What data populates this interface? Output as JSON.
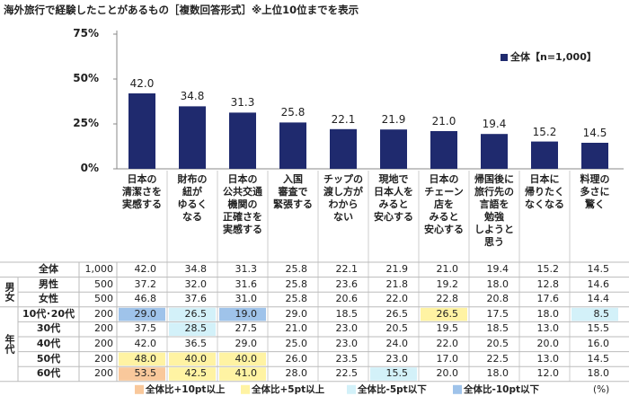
{
  "chart_data": {
    "type": "bar",
    "title": "海外旅行で経験したことがあるもの［複数回答形式］※上位10位までを表示",
    "legend": "全体【n=1,000】",
    "color": "#1f2a6e",
    "categories": [
      "日本の\n清潔さを\n実感する",
      "財布の\n紐が\nゆるく\nなる",
      "日本の\n公共交通\n機関の\n正確さを\n実感する",
      "入国\n審査で\n緊張する",
      "チップの\n渡し方が\nわから\nない",
      "現地で\n日本人を\nみると\n安心する",
      "日本の\nチェーン\n店を\nみると\n安心する",
      "帰国後に\n旅行先の\n言語を\n勉強\nしようと\n思う",
      "日本に\n帰りたく\nなくなる",
      "料理の\n多さに\n驚く"
    ],
    "values": [
      42.0,
      34.8,
      31.3,
      25.8,
      22.1,
      21.9,
      21.0,
      19.4,
      15.2,
      14.5
    ],
    "value_labels": [
      "42.0",
      "34.8",
      "31.3",
      "25.8",
      "22.1",
      "21.9",
      "21.0",
      "19.4",
      "15.2",
      "14.5"
    ],
    "ylim": [
      0,
      75
    ],
    "yticks": [
      {
        "value": 0,
        "label": "0%"
      },
      {
        "value": 25,
        "label": "25%"
      },
      {
        "value": 50,
        "label": "50%"
      },
      {
        "value": 75,
        "label": "75%"
      }
    ]
  },
  "table": {
    "unit": "(%)",
    "legend": [
      {
        "label": "全体比+10pt以上",
        "color": "#f9c89b"
      },
      {
        "label": "全体比+5pt以上",
        "color": "#fff3a3"
      },
      {
        "label": "全体比-5pt以下",
        "color": "#d3f1f9"
      },
      {
        "label": "全体比-10pt以下",
        "color": "#9fc3ea"
      }
    ],
    "total": {
      "label": "全体",
      "n": "1,000",
      "values": [
        "42.0",
        "34.8",
        "31.3",
        "25.8",
        "22.1",
        "21.9",
        "21.0",
        "19.4",
        "15.2",
        "14.5"
      ]
    },
    "groups": [
      {
        "label": "男女",
        "rows": [
          {
            "label": "男性",
            "n": "500",
            "values": [
              "37.2",
              "32.0",
              "31.6",
              "25.8",
              "23.6",
              "21.8",
              "19.2",
              "18.0",
              "12.8",
              "14.6"
            ],
            "highlight": [
              null,
              null,
              null,
              null,
              null,
              null,
              null,
              null,
              null,
              null
            ]
          },
          {
            "label": "女性",
            "n": "500",
            "values": [
              "46.8",
              "37.6",
              "31.0",
              "25.8",
              "20.6",
              "22.0",
              "22.8",
              "20.8",
              "17.6",
              "14.4"
            ],
            "highlight": [
              null,
              null,
              null,
              null,
              null,
              null,
              null,
              null,
              null,
              null
            ]
          }
        ]
      },
      {
        "label": "年代",
        "rows": [
          {
            "label": "10代･20代",
            "n": "200",
            "values": [
              "29.0",
              "26.5",
              "19.0",
              "29.0",
              "18.5",
              "26.5",
              "26.5",
              "17.5",
              "18.0",
              "8.5"
            ],
            "highlight": [
              3,
              2,
              3,
              null,
              null,
              null,
              1,
              null,
              null,
              2
            ]
          },
          {
            "label": "30代",
            "n": "200",
            "values": [
              "37.5",
              "28.5",
              "27.5",
              "21.0",
              "23.0",
              "20.5",
              "19.5",
              "18.5",
              "13.0",
              "15.5"
            ],
            "highlight": [
              null,
              2,
              null,
              null,
              null,
              null,
              null,
              null,
              null,
              null
            ]
          },
          {
            "label": "40代",
            "n": "200",
            "values": [
              "42.0",
              "36.5",
              "29.0",
              "25.0",
              "23.0",
              "24.0",
              "22.0",
              "20.5",
              "20.0",
              "16.0"
            ],
            "highlight": [
              null,
              null,
              null,
              null,
              null,
              null,
              null,
              null,
              null,
              null
            ]
          },
          {
            "label": "50代",
            "n": "200",
            "values": [
              "48.0",
              "40.0",
              "40.0",
              "26.0",
              "23.5",
              "23.0",
              "17.0",
              "22.5",
              "13.0",
              "14.5"
            ],
            "highlight": [
              1,
              1,
              1,
              null,
              null,
              null,
              null,
              null,
              null,
              null
            ]
          },
          {
            "label": "60代",
            "n": "200",
            "values": [
              "53.5",
              "42.5",
              "41.0",
              "28.0",
              "22.5",
              "15.5",
              "20.0",
              "18.0",
              "12.0",
              "18.0"
            ],
            "highlight": [
              0,
              1,
              1,
              null,
              null,
              2,
              null,
              null,
              null,
              null
            ]
          }
        ]
      }
    ]
  }
}
